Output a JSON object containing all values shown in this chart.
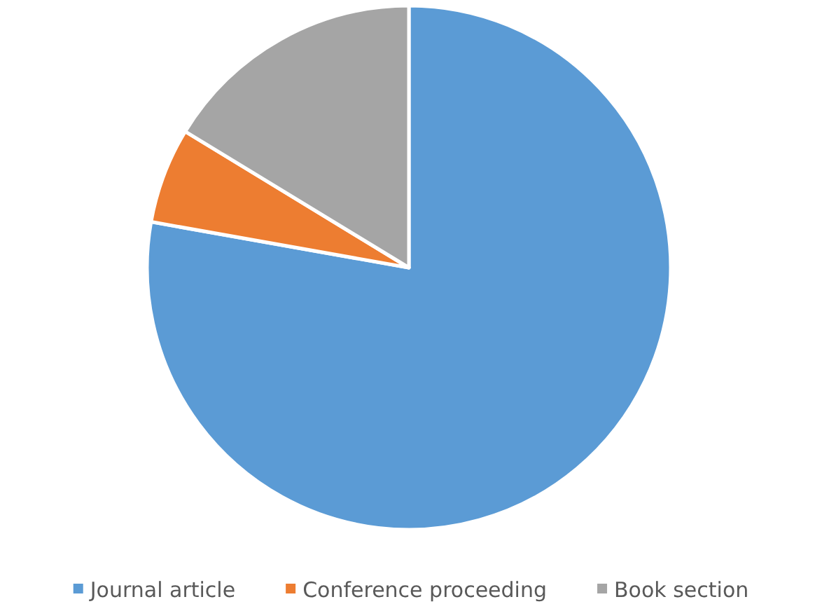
{
  "chart_data": {
    "type": "pie",
    "categories": [
      "Journal article",
      "Conference proceeding",
      "Book section"
    ],
    "values": [
      77.8,
      5.9,
      16.3
    ],
    "colors": [
      "#5b9bd5",
      "#ed7d31",
      "#a5a5a5"
    ],
    "legend": "bottom"
  }
}
